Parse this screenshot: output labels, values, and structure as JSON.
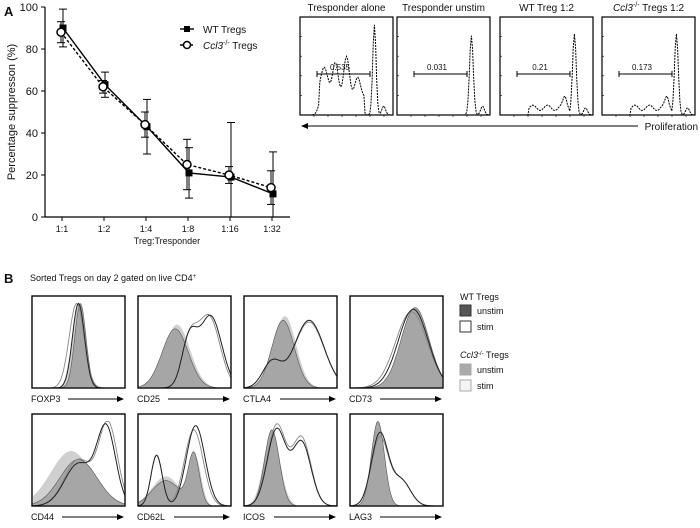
{
  "panel_a_label": "A",
  "panel_b_label": "B",
  "chart_data": [
    {
      "type": "line",
      "categories": [
        "1:1",
        "1:2",
        "1:4",
        "1:8",
        "1:16",
        "1:32"
      ],
      "xlabel": "Treg:Tresponder",
      "ylabel": "Percentage suppresson (%)",
      "ylim": [
        0,
        100
      ],
      "yticks": [
        0,
        20,
        40,
        60,
        80,
        100
      ],
      "legend": "top-right",
      "series": [
        {
          "name": "WT Tregs",
          "marker": "filled-square",
          "line": "solid",
          "values": [
            90,
            63,
            43,
            21,
            19,
            11
          ],
          "error": [
            9,
            6,
            13,
            12,
            26,
            20
          ]
        },
        {
          "name": "Ccl3-/- Tregs",
          "name_italic": "Ccl3",
          "name_sup": "-/-",
          "name_rest": " Tregs",
          "marker": "open-circle",
          "line": "dashed",
          "values": [
            88,
            62,
            44,
            25,
            20,
            14
          ],
          "error": [
            5,
            3,
            6,
            12,
            4,
            8
          ]
        }
      ]
    },
    {
      "type": "histogram",
      "panels": [
        {
          "title": "Tresponder alone",
          "gate_value": "0.535",
          "profile": "multi-peak"
        },
        {
          "title": "Tresponder unstim",
          "gate_value": "0.031",
          "profile": "single-peak"
        },
        {
          "title": "WT Treg 1:2",
          "gate_value": "0.21",
          "profile": "low-divisions"
        },
        {
          "title": "Ccl3-/- Tregs 1:2",
          "title_italic": "Ccl3",
          "title_sup": "-/-",
          "title_rest": " Tregs 1:2",
          "gate_value": "0.173",
          "profile": "low-divisions"
        }
      ],
      "axis_label": "Proliferation"
    },
    {
      "type": "histogram",
      "title": "Sorted Tregs on day 2 gated on live CD4",
      "title_sup": "+",
      "markers": [
        "FOXP3",
        "CD25",
        "CTLA4",
        "CD73",
        "CD44",
        "CD62L",
        "ICOS",
        "LAG3"
      ],
      "legend": {
        "groups": [
          {
            "title": "WT Tregs",
            "items": [
              {
                "label": "unstim",
                "color": "#555555"
              },
              {
                "label": "stim",
                "color": "#ffffff"
              }
            ]
          },
          {
            "title_italic": "Ccl3",
            "title_sup": "-/-",
            "title_rest": " Tregs",
            "items": [
              {
                "label": "unstim",
                "color": "#aaaaaa"
              },
              {
                "label": "stim",
                "color": "#f4f4f4"
              }
            ]
          }
        ]
      }
    }
  ]
}
